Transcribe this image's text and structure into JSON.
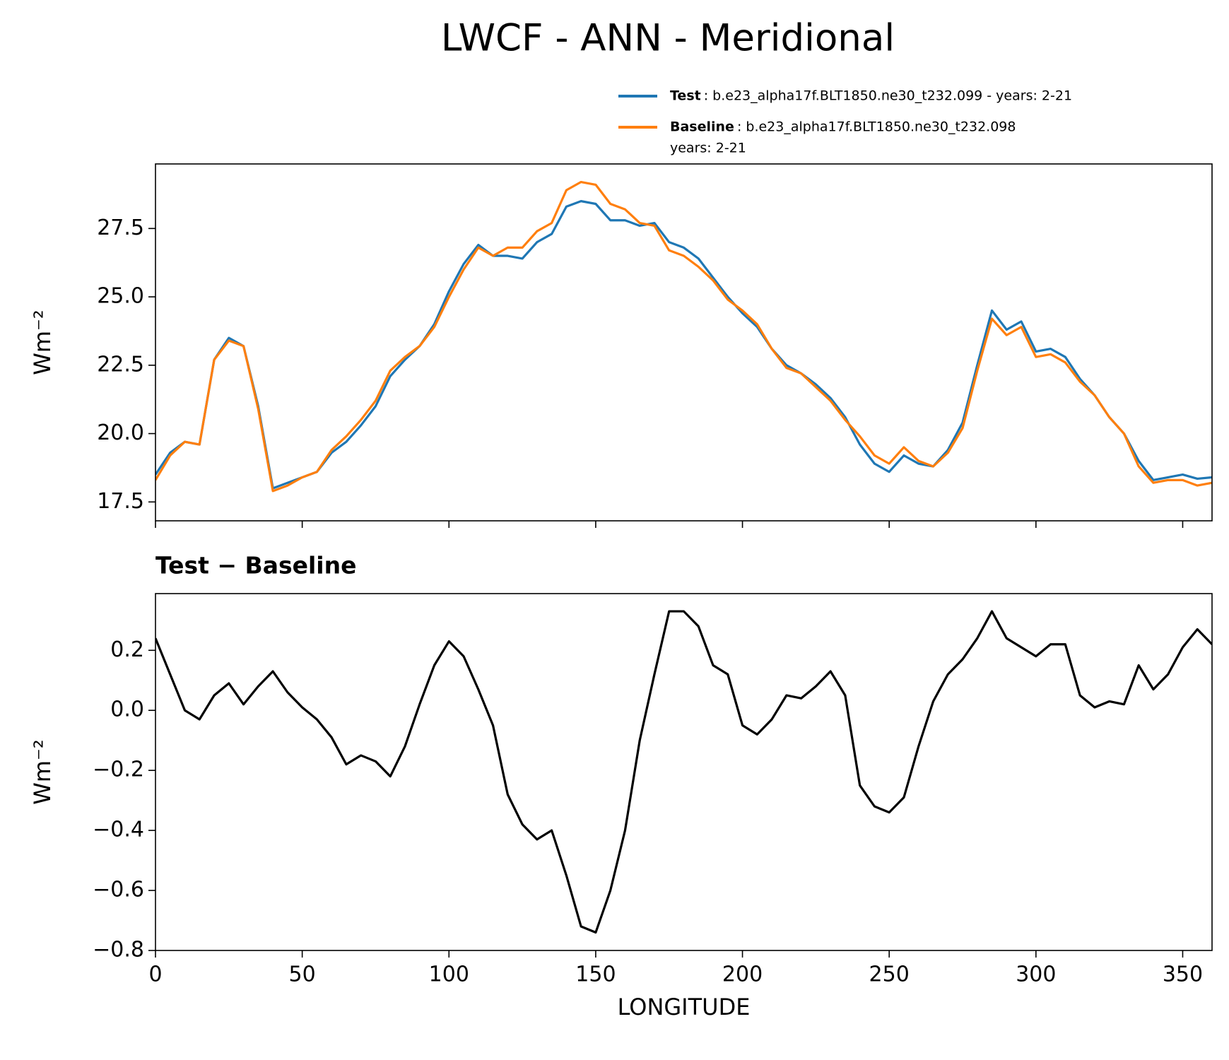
{
  "title": "LWCF - ANN - Meridional",
  "chart_data": [
    {
      "type": "line",
      "ylabel": "Wm⁻²",
      "x": [
        0,
        5,
        10,
        15,
        20,
        25,
        30,
        35,
        40,
        45,
        50,
        55,
        60,
        65,
        70,
        75,
        80,
        85,
        90,
        95,
        100,
        105,
        110,
        115,
        120,
        125,
        130,
        135,
        140,
        145,
        150,
        155,
        160,
        165,
        170,
        175,
        180,
        185,
        190,
        195,
        200,
        205,
        210,
        215,
        220,
        225,
        230,
        235,
        240,
        245,
        250,
        255,
        260,
        265,
        270,
        275,
        280,
        285,
        290,
        295,
        300,
        305,
        310,
        315,
        320,
        325,
        330,
        335,
        340,
        345,
        350,
        355,
        360
      ],
      "series": [
        {
          "name": "Test",
          "description": [
            ": b.e23_alpha17f.BLT1850.ne30_t232.099 - years: 2-21"
          ],
          "color": "#1f77b4",
          "values": [
            18.5,
            19.3,
            19.7,
            19.6,
            22.7,
            23.5,
            23.2,
            21.0,
            18.0,
            18.2,
            18.4,
            18.6,
            19.3,
            19.7,
            20.3,
            21.0,
            22.1,
            22.7,
            23.2,
            24.0,
            25.2,
            26.2,
            26.9,
            26.5,
            26.5,
            26.4,
            27.0,
            27.3,
            28.3,
            28.5,
            28.4,
            27.8,
            27.8,
            27.6,
            27.7,
            27.0,
            26.8,
            26.4,
            25.7,
            25.0,
            24.4,
            23.9,
            23.1,
            22.5,
            22.2,
            21.8,
            21.3,
            20.6,
            19.6,
            18.9,
            18.6,
            19.2,
            18.9,
            18.8,
            19.4,
            20.4,
            22.5,
            24.5,
            23.8,
            24.1,
            23.0,
            23.1,
            22.8,
            22.0,
            21.4,
            20.6,
            20.0,
            19.0,
            18.3,
            18.4,
            18.5,
            18.35,
            18.4
          ]
        },
        {
          "name": "Baseline",
          "description": [
            ": b.e23_alpha17f.BLT1850.ne30_t232.098",
            "years: 2-21"
          ],
          "color": "#ff7f0e",
          "values": [
            18.3,
            19.2,
            19.7,
            19.6,
            22.7,
            23.4,
            23.2,
            20.9,
            17.9,
            18.1,
            18.4,
            18.6,
            19.4,
            19.9,
            20.5,
            21.2,
            22.3,
            22.8,
            23.2,
            23.9,
            25.0,
            26.0,
            26.8,
            26.5,
            26.8,
            26.8,
            27.4,
            27.7,
            28.9,
            29.2,
            29.1,
            28.4,
            28.2,
            27.7,
            27.6,
            26.7,
            26.5,
            26.1,
            25.6,
            24.9,
            24.5,
            24.0,
            23.1,
            22.4,
            22.2,
            21.7,
            21.2,
            20.5,
            19.9,
            19.2,
            18.9,
            19.5,
            19.0,
            18.8,
            19.3,
            20.2,
            22.3,
            24.2,
            23.6,
            23.9,
            22.8,
            22.9,
            22.6,
            21.9,
            21.4,
            20.6,
            20.0,
            18.8,
            18.2,
            18.3,
            18.3,
            18.1,
            18.2
          ]
        }
      ],
      "xlim": [
        0,
        360
      ],
      "xticks": [
        0,
        50,
        100,
        150,
        200,
        250,
        300,
        350
      ],
      "show_xticklabels": false,
      "ylim": [
        16.81,
        29.86
      ],
      "yticks": [
        17.5,
        {
          "value": 20.0,
          "label": "20.0"
        },
        22.5,
        {
          "value": 25.0,
          "label": "25.0"
        },
        27.5
      ],
      "legend": "upper right"
    },
    {
      "type": "line",
      "subtitle": "Test − Baseline",
      "ylabel": "Wm⁻²",
      "xlabel": "LONGITUDE",
      "x": [
        0,
        5,
        10,
        15,
        20,
        25,
        30,
        35,
        40,
        45,
        50,
        55,
        60,
        65,
        70,
        75,
        80,
        85,
        90,
        95,
        100,
        105,
        110,
        115,
        120,
        125,
        130,
        135,
        140,
        145,
        150,
        155,
        160,
        165,
        170,
        175,
        180,
        185,
        190,
        195,
        200,
        205,
        210,
        215,
        220,
        225,
        230,
        235,
        240,
        245,
        250,
        255,
        260,
        265,
        270,
        275,
        280,
        285,
        290,
        295,
        300,
        305,
        310,
        315,
        320,
        325,
        330,
        335,
        340,
        345,
        350,
        355,
        360
      ],
      "series": [
        {
          "color": "#000000",
          "values": [
            0.24,
            0.12,
            0.0,
            -0.03,
            0.05,
            0.09,
            0.02,
            0.08,
            0.13,
            0.06,
            0.01,
            -0.03,
            -0.09,
            -0.18,
            -0.15,
            -0.17,
            -0.22,
            -0.12,
            0.02,
            0.15,
            0.23,
            0.18,
            0.07,
            -0.05,
            -0.28,
            -0.38,
            -0.43,
            -0.4,
            -0.55,
            -0.72,
            -0.74,
            -0.6,
            -0.4,
            -0.1,
            0.12,
            0.33,
            0.33,
            0.28,
            0.15,
            0.12,
            -0.05,
            -0.08,
            -0.03,
            0.05,
            0.04,
            0.08,
            0.13,
            0.05,
            -0.25,
            -0.32,
            -0.34,
            -0.29,
            -0.12,
            0.03,
            0.12,
            0.17,
            0.24,
            0.33,
            0.24,
            0.21,
            0.18,
            0.22,
            0.22,
            0.05,
            0.01,
            0.03,
            0.02,
            0.15,
            0.07,
            0.12,
            0.21,
            0.27,
            0.22
          ]
        }
      ],
      "xlim": [
        0,
        360
      ],
      "xticks": [
        0,
        50,
        100,
        150,
        200,
        250,
        300,
        350
      ],
      "show_xticklabels": true,
      "ylim": [
        -0.8,
        0.389
      ],
      "yticks": [
        {
          "value": -0.8,
          "label": "−0.8"
        },
        {
          "value": -0.6,
          "label": "−0.6"
        },
        {
          "value": -0.4,
          "label": "−0.4"
        },
        {
          "value": -0.2,
          "label": "−0.2"
        },
        {
          "value": 0.0,
          "label": "0.0"
        },
        0.2
      ]
    }
  ]
}
